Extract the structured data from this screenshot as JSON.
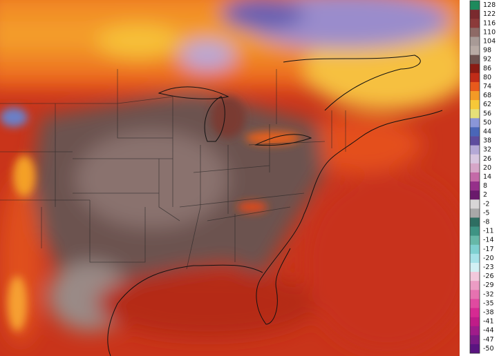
{
  "legend": {
    "labels": [
      128,
      122,
      116,
      110,
      104,
      98,
      92,
      86,
      80,
      74,
      68,
      62,
      56,
      50,
      44,
      38,
      32,
      26,
      20,
      14,
      8,
      2,
      -2,
      -5,
      -8,
      -11,
      -14,
      -17,
      -20,
      -23,
      -26,
      -29,
      -32,
      -35,
      -38,
      -41,
      -44,
      -47,
      -50
    ],
    "colors": [
      "#1d8a5c",
      "#7a2a2e",
      "#8c3a3a",
      "#8e6a66",
      "#a89a96",
      "#b8aaa4",
      "#6e5350",
      "#8a1c14",
      "#c02c18",
      "#e85a1c",
      "#f39a26",
      "#f6c838",
      "#e6e078",
      "#8a96d8",
      "#4a66b8",
      "#5e4c9e",
      "#b4a8d6",
      "#d8c6e0",
      "#d6a6c8",
      "#c46aa8",
      "#96308a",
      "#6a1a6c",
      "#d8d6d6",
      "#a8a8a8",
      "#2e6e62",
      "#3e9484",
      "#66b8a8",
      "#7ed0d0",
      "#a6e2e8",
      "#d2f0f4",
      "#f2c8dc",
      "#ec9cc4",
      "#e672b0",
      "#e04aa0",
      "#d62a92",
      "#c01c88",
      "#a01c8a",
      "#7a1a86",
      "#5a1480"
    ]
  }
}
